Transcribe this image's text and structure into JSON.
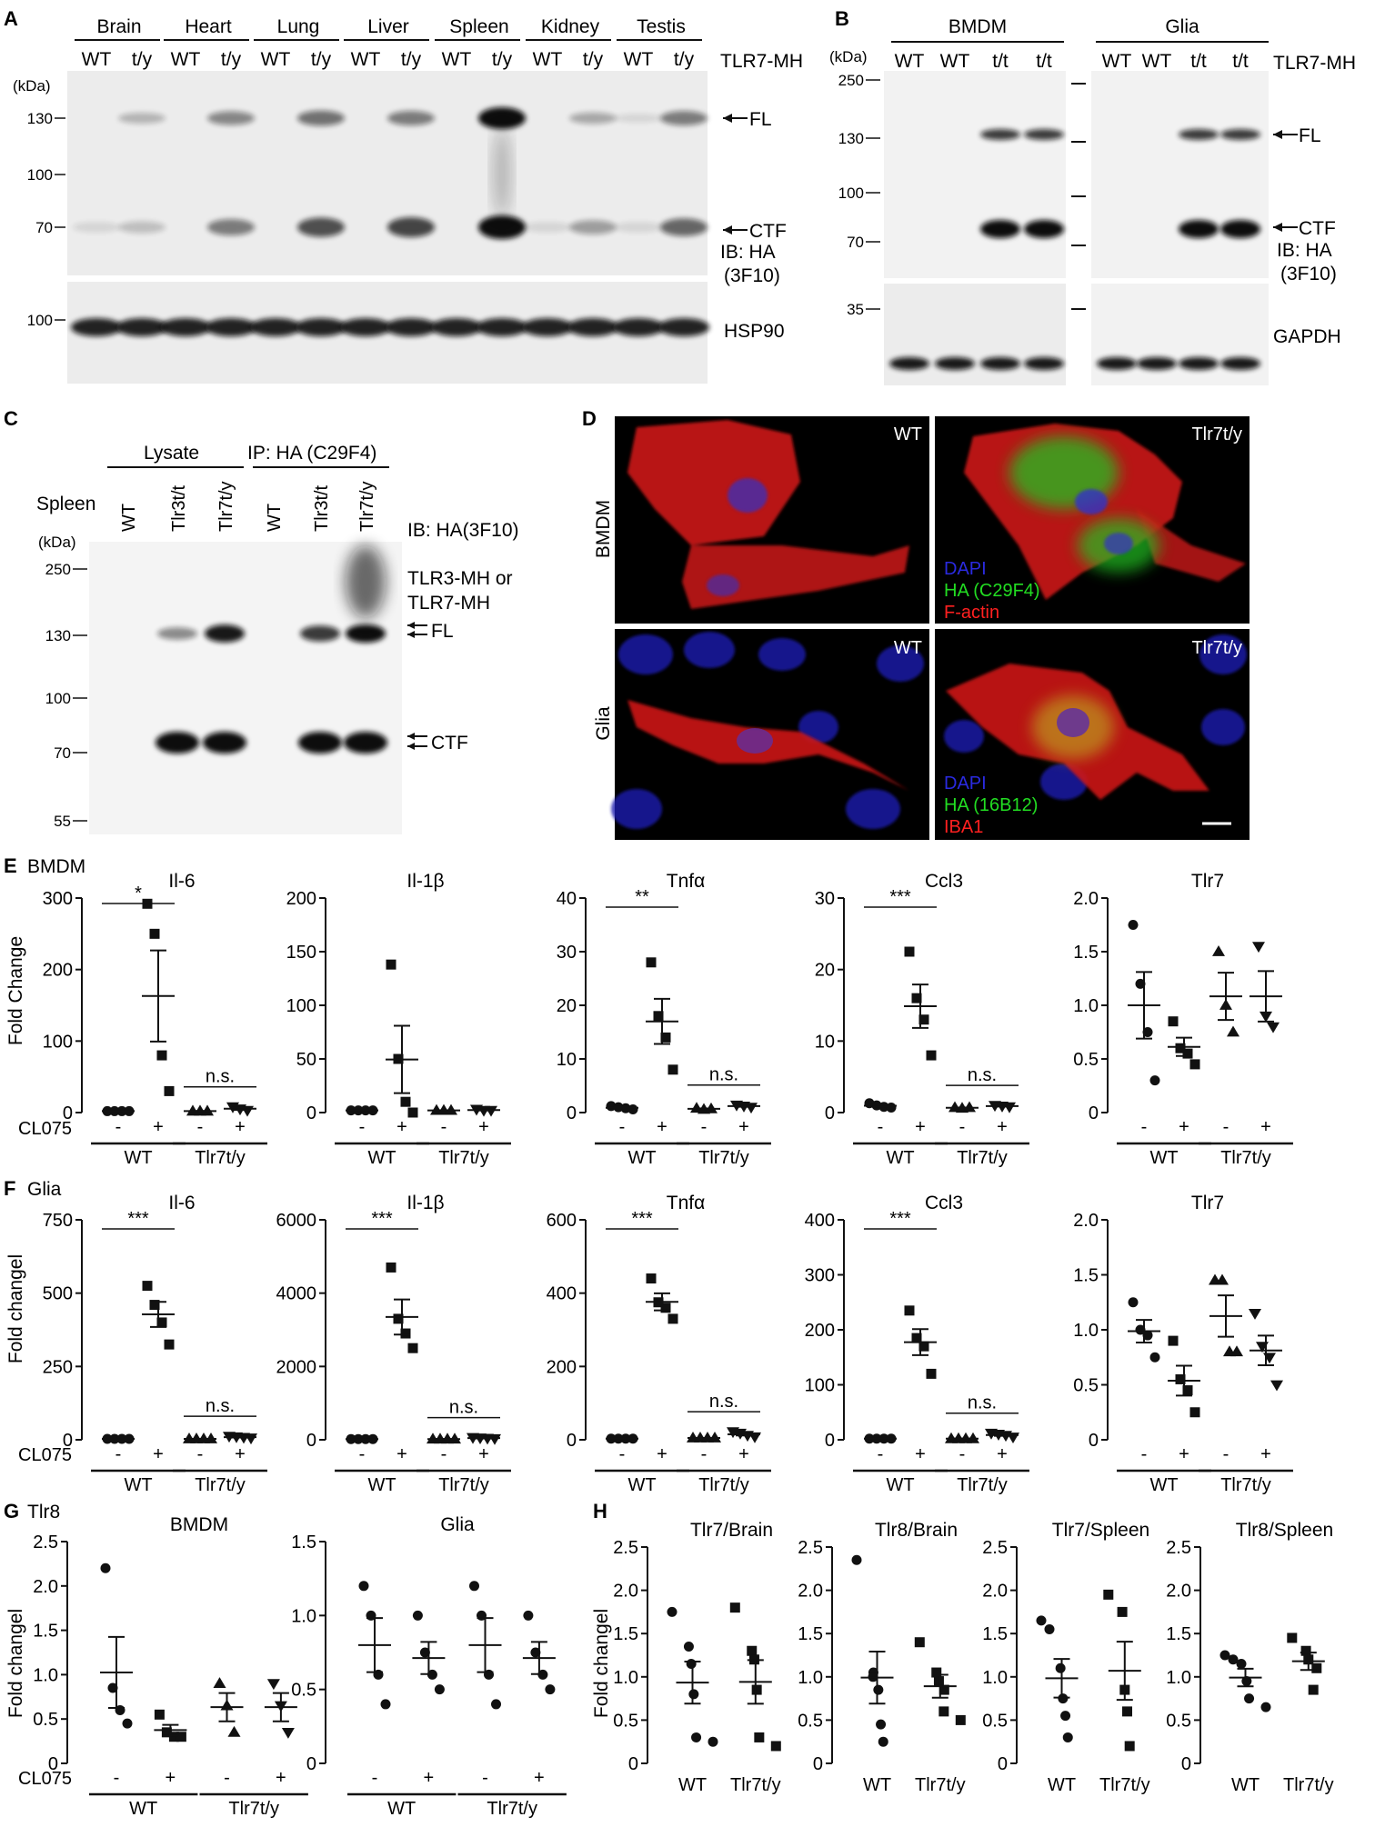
{
  "panels": {
    "A": {
      "letter": "A",
      "tissues": [
        "Brain",
        "Heart",
        "Lung",
        "Liver",
        "Spleen",
        "Kidney",
        "Testis"
      ],
      "genotypes": [
        "WT",
        "t/y"
      ],
      "construct": "TLR7-MH",
      "kda_label": "(kDa)",
      "markers_top": [
        "130",
        "100",
        "70"
      ],
      "marker_bottom": "100",
      "band_fl": "FL",
      "band_ctf": "CTF",
      "ib1": "IB: HA",
      "ib2": "(3F10)",
      "loading": "HSP90"
    },
    "B": {
      "letter": "B",
      "groups": [
        "BMDM",
        "Glia"
      ],
      "lanes": [
        "WT",
        "WT",
        "t/t",
        "t/t"
      ],
      "construct": "TLR7-MH",
      "kda_label": "(kDa)",
      "markers_top": [
        "250",
        "130",
        "100",
        "70"
      ],
      "marker_bottom": "35",
      "band_fl": "FL",
      "band_ctf": "CTF",
      "ib1": "IB: HA",
      "ib2": "(3F10)",
      "loading": "GAPDH"
    },
    "C": {
      "letter": "C",
      "group_lysate": "Lysate",
      "group_ip": "IP: HA (C29F4)",
      "sample": "Spleen",
      "lanes": [
        "WT",
        "Tlr3t/t",
        "Tlr7t/y",
        "WT",
        "Tlr3t/t",
        "Tlr7t/y"
      ],
      "kda_label": "(kDa)",
      "markers": [
        "250",
        "130",
        "100",
        "70",
        "55"
      ],
      "ib": "IB: HA(3F10)",
      "construct1": "TLR3-MH or",
      "construct2": "TLR7-MH",
      "band_fl": "FL",
      "band_ctf": "CTF"
    },
    "D": {
      "letter": "D",
      "rows": [
        "BMDM",
        "Glia"
      ],
      "cols": [
        "WT",
        "Tlr7t/y"
      ],
      "legend_bmdm": [
        "DAPI",
        "HA (C29F4)",
        "F-actin"
      ],
      "legend_glia": [
        "DAPI",
        "HA (16B12)",
        "IBA1"
      ]
    },
    "E": {
      "letter": "E",
      "row_label": "BMDM",
      "ylabel": "Fold Change",
      "treatment": "CL075",
      "minus": "-",
      "plus": "+",
      "geno_wt": "WT",
      "geno_ko": "Tlr7t/y"
    },
    "F": {
      "letter": "F",
      "row_label": "Glia",
      "ylabel": "Fold changel",
      "treatment": "CL075",
      "minus": "-",
      "plus": "+",
      "geno_wt": "WT",
      "geno_ko": "Tlr7t/y"
    },
    "G": {
      "letter": "G",
      "row_label": "Tlr8",
      "ylabel": "Fold changel",
      "treatment": "CL075",
      "minus": "-",
      "plus": "+",
      "geno_wt": "WT",
      "geno_ko": "Tlr7t/y"
    },
    "H": {
      "letter": "H",
      "ylabel": "Fold changel",
      "geno_wt": "WT",
      "geno_ko": "Tlr7t/y"
    }
  },
  "colors": {
    "blot_bg": "#ececec",
    "band": "#111111",
    "micro_bg": "#000000",
    "dapi": "#2a2ae0",
    "ha": "#22dd22",
    "red": "#ff2020",
    "label_white": "#ffffff"
  },
  "chart_data": [
    {
      "id": "E1",
      "type": "scatter",
      "title": "Il-6",
      "ylim": [
        0,
        300
      ],
      "yticks": [
        "300",
        "200",
        "100",
        "0"
      ],
      "groups": [
        [
          2,
          2,
          2,
          2
        ],
        [
          292,
          250,
          80,
          30
        ],
        [
          2,
          2,
          2
        ],
        [
          8,
          5,
          3
        ]
      ],
      "sig": [
        {
          "text": "*",
          "from": 0,
          "to": 1
        },
        {
          "text": "n.s.",
          "from": 2,
          "to": 3
        }
      ]
    },
    {
      "id": "E2",
      "type": "scatter",
      "title": "Il-1β",
      "ylim": [
        0,
        200
      ],
      "yticks": [
        "200",
        "150",
        "100",
        "50",
        "0"
      ],
      "groups": [
        [
          2,
          2,
          2,
          2
        ],
        [
          138,
          50,
          10,
          0
        ],
        [
          2,
          2,
          2
        ],
        [
          3,
          2,
          2
        ]
      ],
      "sig": []
    },
    {
      "id": "E3",
      "type": "scatter",
      "title": "Tnfα",
      "ylim": [
        0,
        40
      ],
      "yticks": [
        "40",
        "30",
        "20",
        "10",
        "0"
      ],
      "groups": [
        [
          1.2,
          1,
          0.8,
          0.6
        ],
        [
          28,
          18,
          14,
          8
        ],
        [
          0.8,
          0.6,
          0.7
        ],
        [
          1.4,
          1.2,
          1.0
        ]
      ],
      "sig": [
        {
          "text": "**",
          "from": 0,
          "to": 1
        },
        {
          "text": "n.s.",
          "from": 2,
          "to": 3
        }
      ]
    },
    {
      "id": "E4",
      "type": "scatter",
      "title": "Ccl3",
      "ylim": [
        0,
        30
      ],
      "yticks": [
        "30",
        "20",
        "10",
        "0"
      ],
      "groups": [
        [
          1.3,
          1,
          0.8,
          0.7
        ],
        [
          22.5,
          16,
          13,
          8
        ],
        [
          0.7,
          0.6,
          0.7
        ],
        [
          1.0,
          0.9,
          0.8
        ]
      ],
      "sig": [
        {
          "text": "***",
          "from": 0,
          "to": 1
        },
        {
          "text": "n.s.",
          "from": 2,
          "to": 3
        }
      ]
    },
    {
      "id": "E5",
      "type": "scatter",
      "title": "Tlr7",
      "ylim": [
        0,
        2.0
      ],
      "yticks": [
        "2.0",
        "1.5",
        "1.0",
        "0.5",
        "0"
      ],
      "groups": [
        [
          1.75,
          1.2,
          0.75,
          0.3
        ],
        [
          0.85,
          0.6,
          0.55,
          0.45
        ],
        [
          1.5,
          1.0,
          0.75
        ],
        [
          1.55,
          0.9,
          0.8
        ]
      ],
      "sig": []
    },
    {
      "id": "F1",
      "type": "scatter",
      "title": "Il-6",
      "ylim": [
        0,
        750
      ],
      "yticks": [
        "750",
        "500",
        "250",
        "0"
      ],
      "groups": [
        [
          3,
          3,
          3,
          3
        ],
        [
          525,
          460,
          400,
          325
        ],
        [
          3,
          3,
          3,
          3
        ],
        [
          12,
          10,
          8,
          6
        ]
      ],
      "sig": [
        {
          "text": "***",
          "from": 0,
          "to": 1
        },
        {
          "text": "n.s.",
          "from": 2,
          "to": 3
        }
      ]
    },
    {
      "id": "F2",
      "type": "scatter",
      "title": "Il-1β",
      "ylim": [
        0,
        6000
      ],
      "yticks": [
        "6000",
        "4000",
        "2000",
        "0"
      ],
      "groups": [
        [
          20,
          20,
          20,
          20
        ],
        [
          4700,
          3300,
          2900,
          2500
        ],
        [
          20,
          20,
          20,
          20
        ],
        [
          60,
          50,
          40,
          30
        ]
      ],
      "sig": [
        {
          "text": "***",
          "from": 0,
          "to": 1
        },
        {
          "text": "n.s.",
          "from": 2,
          "to": 3
        }
      ]
    },
    {
      "id": "F3",
      "type": "scatter",
      "title": "Tnfα",
      "ylim": [
        0,
        600
      ],
      "yticks": [
        "600",
        "400",
        "200",
        "0"
      ],
      "groups": [
        [
          3,
          3,
          3,
          3
        ],
        [
          440,
          375,
          360,
          330
        ],
        [
          5,
          5,
          5,
          5
        ],
        [
          22,
          18,
          12,
          8
        ]
      ],
      "sig": [
        {
          "text": "***",
          "from": 0,
          "to": 1
        },
        {
          "text": "n.s.",
          "from": 2,
          "to": 3
        }
      ]
    },
    {
      "id": "F4",
      "type": "scatter",
      "title": "Ccl3",
      "ylim": [
        0,
        400
      ],
      "yticks": [
        "400",
        "300",
        "200",
        "100",
        "0"
      ],
      "groups": [
        [
          2,
          2,
          2,
          2
        ],
        [
          235,
          185,
          170,
          120
        ],
        [
          2,
          2,
          2,
          2
        ],
        [
          12,
          10,
          8,
          5
        ]
      ],
      "sig": [
        {
          "text": "***",
          "from": 0,
          "to": 1
        },
        {
          "text": "n.s.",
          "from": 2,
          "to": 3
        }
      ]
    },
    {
      "id": "F5",
      "type": "scatter",
      "title": "Tlr7",
      "ylim": [
        0,
        2.0
      ],
      "yticks": [
        "2.0",
        "1.5",
        "1.0",
        "0.5",
        "0"
      ],
      "groups": [
        [
          1.25,
          1.0,
          0.95,
          0.75
        ],
        [
          0.9,
          0.55,
          0.45,
          0.25
        ],
        [
          1.45,
          1.45,
          0.8,
          0.8
        ],
        [
          1.15,
          0.85,
          0.75,
          0.5
        ]
      ],
      "sig": []
    },
    {
      "id": "G1",
      "type": "scatter",
      "title": "BMDM",
      "ylim": [
        0,
        2.5
      ],
      "yticks": [
        "2.5",
        "2.0",
        "1.5",
        "1.0",
        "0.5",
        "0"
      ],
      "groups": [
        [
          2.2,
          0.85,
          0.6,
          0.45
        ],
        [
          0.55,
          0.35,
          0.3,
          0.3
        ],
        [
          0.9,
          0.65,
          0.35
        ],
        [
          0.9,
          0.65,
          0.35
        ]
      ],
      "sig": []
    },
    {
      "id": "G2",
      "type": "scatter",
      "title": "Glia",
      "ylim": [
        0,
        1.5
      ],
      "yticks": [
        "1.5",
        "1.0",
        "0.5",
        "0"
      ],
      "groups": [
        [
          1.2,
          1.0,
          0.6,
          0.4
        ],
        [
          1.0,
          0.75,
          0.6,
          0.5
        ],
        [
          1.2,
          1.0,
          0.6,
          0.4
        ],
        [
          1.0,
          0.75,
          0.6,
          0.5
        ]
      ],
      "sig": []
    },
    {
      "id": "H1",
      "type": "scatter",
      "title": "Tlr7/Brain",
      "ylim": [
        0,
        2.5
      ],
      "yticks": [
        "2.5",
        "2.0",
        "1.5",
        "1.0",
        "0.5",
        "0"
      ],
      "groups": [
        [
          1.75,
          1.35,
          1.15,
          0.8,
          0.3,
          0.25
        ],
        [
          1.8,
          1.3,
          1.2,
          0.85,
          0.3,
          0.2
        ]
      ],
      "sig": []
    },
    {
      "id": "H2",
      "type": "scatter",
      "title": "Tlr8/Brain",
      "ylim": [
        0,
        2.5
      ],
      "yticks": [
        "2.5",
        "2.0",
        "1.5",
        "1.0",
        "0.5",
        "0"
      ],
      "groups": [
        [
          2.35,
          1.05,
          1.0,
          0.85,
          0.45,
          0.25
        ],
        [
          1.4,
          1.05,
          0.95,
          0.85,
          0.6,
          0.5
        ]
      ],
      "sig": []
    },
    {
      "id": "H3",
      "type": "scatter",
      "title": "Tlr7/Spleen",
      "ylim": [
        0,
        2.5
      ],
      "yticks": [
        "2.5",
        "2.0",
        "1.5",
        "1.0",
        "0.5",
        "0"
      ],
      "groups": [
        [
          1.65,
          1.55,
          1.1,
          0.75,
          0.55,
          0.3
        ],
        [
          1.95,
          1.75,
          0.85,
          0.6,
          0.2
        ]
      ],
      "sig": []
    },
    {
      "id": "H4",
      "type": "scatter",
      "title": "Tlr8/Spleen",
      "ylim": [
        0,
        2.5
      ],
      "yticks": [
        "2.5",
        "2.0",
        "1.5",
        "1.0",
        "0.5",
        "0"
      ],
      "groups": [
        [
          1.25,
          1.2,
          1.15,
          0.95,
          0.75,
          0.65
        ],
        [
          1.45,
          1.3,
          1.2,
          1.1,
          0.85
        ]
      ],
      "sig": []
    }
  ]
}
